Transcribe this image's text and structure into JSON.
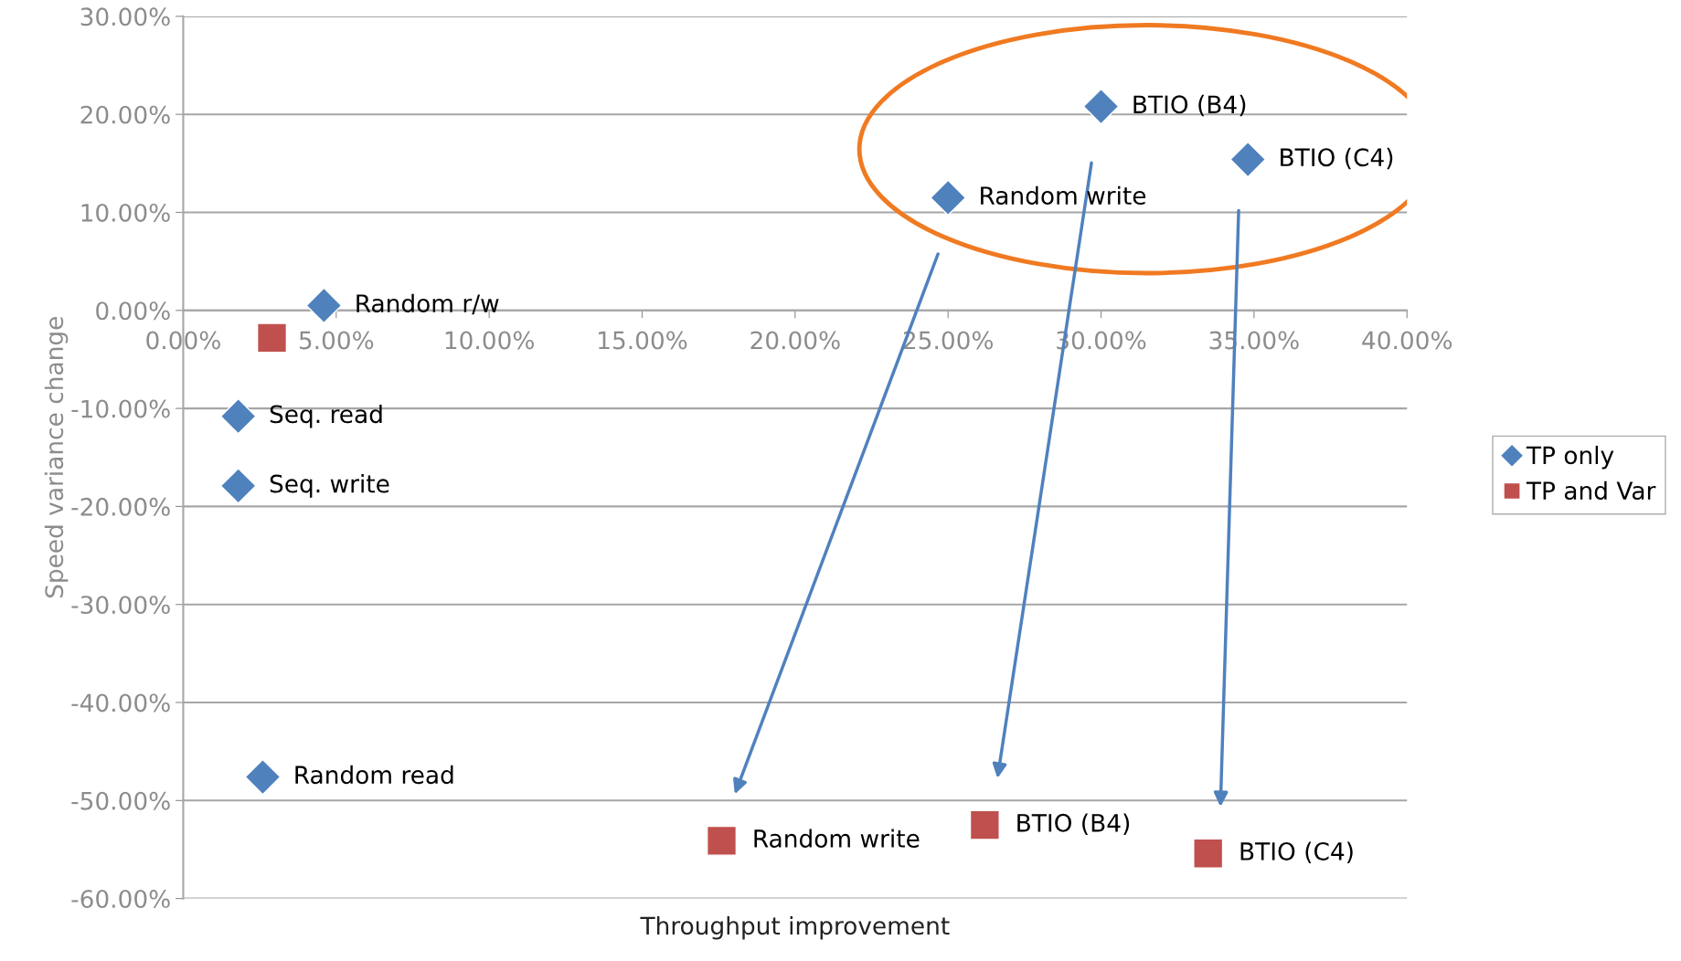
{
  "chart_data": {
    "type": "scatter",
    "xlabel": "Throughput improvement",
    "ylabel": "Speed variance change",
    "xlim": [
      0,
      40
    ],
    "ylim": [
      -60,
      30
    ],
    "xticks": [
      {
        "value": 0,
        "label": "0.00%"
      },
      {
        "value": 5,
        "label": "5.00%"
      },
      {
        "value": 10,
        "label": "10.00%"
      },
      {
        "value": 15,
        "label": "15.00%"
      },
      {
        "value": 20,
        "label": "20.00%"
      },
      {
        "value": 25,
        "label": "25.00%"
      },
      {
        "value": 30,
        "label": "30.00%"
      },
      {
        "value": 35,
        "label": "35.00%"
      },
      {
        "value": 40,
        "label": "40.00%"
      }
    ],
    "yticks": [
      {
        "value": 30,
        "label": "30.00%"
      },
      {
        "value": 20,
        "label": "20.00%"
      },
      {
        "value": 10,
        "label": "10.00%"
      },
      {
        "value": 0,
        "label": "0.00%"
      },
      {
        "value": -10,
        "label": "-10.00%"
      },
      {
        "value": -20,
        "label": "-20.00%"
      },
      {
        "value": -30,
        "label": "-30.00%"
      },
      {
        "value": -40,
        "label": "-40.00%"
      },
      {
        "value": -50,
        "label": "-50.00%"
      },
      {
        "value": -60,
        "label": "-60.00%"
      }
    ],
    "grid": "y",
    "legend": "right",
    "series": [
      {
        "name": "TP only",
        "color": "#4f81bd",
        "marker": "diamond",
        "x": [
          25,
          30,
          34.8,
          4.6,
          1.8,
          1.8,
          2.6
        ],
        "values": [
          11.5,
          20.8,
          15.4,
          0.5,
          -10.8,
          -17.9,
          -47.6
        ]
      },
      {
        "name": "TP and Var",
        "color": "#c0504d",
        "marker": "square",
        "x": [
          17.6,
          26.2,
          33.5,
          2.9
        ],
        "values": [
          -54.1,
          -52.5,
          -55.4,
          -2.8
        ]
      }
    ],
    "annotations": [
      {
        "text": "Random write",
        "x": 25,
        "y": 11.5
      },
      {
        "text": "BTIO (B4)",
        "x": 30,
        "y": 20.8
      },
      {
        "text": "BTIO (C4)",
        "x": 34.8,
        "y": 15.4
      },
      {
        "text": "Random r/w",
        "x": 4.6,
        "y": 0.5
      },
      {
        "text": "Seq. read",
        "x": 1.8,
        "y": -10.8
      },
      {
        "text": "Seq. write",
        "x": 1.8,
        "y": -17.9
      },
      {
        "text": "Random read",
        "x": 2.6,
        "y": -47.6
      },
      {
        "text": "Random write",
        "x": 17.6,
        "y": -54.1
      },
      {
        "text": "BTIO (B4)",
        "x": 26.2,
        "y": -52.5
      },
      {
        "text": "BTIO (C4)",
        "x": 33.5,
        "y": -55.4
      }
    ]
  }
}
